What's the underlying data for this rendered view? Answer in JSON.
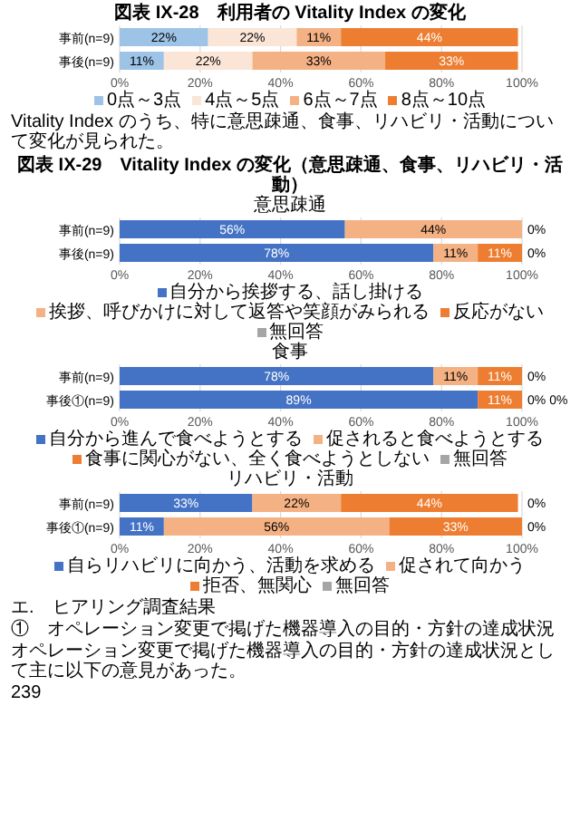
{
  "chart_data": [
    {
      "type": "bar",
      "orientation": "horizontal",
      "stacked": true,
      "title": "図表 IX-28　利用者の Vitality Index の変化",
      "categories": [
        "事前(n=9)",
        "事後(n=9)"
      ],
      "series": [
        {
          "name": "0点～3点",
          "color": "#9dc3e6",
          "values": [
            22,
            11
          ],
          "value_labels": [
            "22%",
            "11%"
          ]
        },
        {
          "name": "4点～5点",
          "color": "#fbe5d6",
          "values": [
            22,
            22
          ],
          "value_labels": [
            "22%",
            "22%"
          ]
        },
        {
          "name": "6点～7点",
          "color": "#f4b183",
          "values": [
            11,
            33
          ],
          "value_labels": [
            "11%",
            "33%"
          ]
        },
        {
          "name": "8点～10点",
          "color": "#ed7d31",
          "values": [
            44,
            33
          ],
          "value_labels": [
            "44%",
            "33%"
          ]
        }
      ],
      "xlim": [
        0,
        100
      ],
      "xticks": [
        {
          "value": 0,
          "label": "0%"
        },
        {
          "value": 20,
          "label": "20%"
        },
        {
          "value": 40,
          "label": "40%"
        },
        {
          "value": 60,
          "label": "60%"
        },
        {
          "value": 80,
          "label": "80%"
        },
        {
          "value": 100,
          "label": "100%"
        }
      ],
      "grid": "x",
      "legend": "bottom",
      "annotations": [
        "Vitality Index のうち、特に意思疎通、食事、リハビリ・活動について変化が見られた。"
      ]
    },
    {
      "type": "bar",
      "orientation": "horizontal",
      "stacked": true,
      "title": "図表 IX-29　Vitality Index の変化（意思疎通、食事、リハビリ・活動）",
      "subtitle": "意思疎通",
      "categories": [
        "事前(n=9)",
        "事後(n=9)"
      ],
      "series": [
        {
          "name": "自分から挨拶する、話し掛ける",
          "color": "#4472c4",
          "values": [
            56,
            78
          ],
          "value_labels": [
            "56%",
            "78%"
          ]
        },
        {
          "name": "挨拶、呼びかけに対して返答や笑顔がみられる",
          "color": "#f4b183",
          "values": [
            44,
            11
          ],
          "value_labels": [
            "44%",
            "11%"
          ]
        },
        {
          "name": "反応がない",
          "color": "#ed7d31",
          "values": [
            0,
            11
          ],
          "value_labels": [
            null,
            "11%"
          ]
        },
        {
          "name": "無回答",
          "color": "#a5a5a5",
          "values": [
            0,
            0
          ],
          "value_labels": [
            "0%",
            "0%"
          ]
        }
      ],
      "xlim": [
        0,
        100
      ],
      "xticks": [
        {
          "value": 0,
          "label": "0%"
        },
        {
          "value": 20,
          "label": "20%"
        },
        {
          "value": 40,
          "label": "40%"
        },
        {
          "value": 60,
          "label": "60%"
        },
        {
          "value": 80,
          "label": "80%"
        },
        {
          "value": 100,
          "label": "100%"
        }
      ],
      "grid": "x",
      "legend": "bottom"
    },
    {
      "type": "bar",
      "orientation": "horizontal",
      "stacked": true,
      "subtitle": "食事",
      "categories": [
        "事前(n=9)",
        "事後①(n=9)"
      ],
      "series": [
        {
          "name": "自分から進んで食べようとする",
          "color": "#4472c4",
          "values": [
            78,
            89
          ],
          "value_labels": [
            "78%",
            "89%"
          ]
        },
        {
          "name": "促されると食べようとする",
          "color": "#f4b183",
          "values": [
            11,
            0
          ],
          "value_labels": [
            "11%",
            "0%"
          ]
        },
        {
          "name": "食事に関心がない、全く食べようとしない",
          "color": "#ed7d31",
          "values": [
            11,
            11
          ],
          "value_labels": [
            "11%",
            "11%"
          ]
        },
        {
          "name": "無回答",
          "color": "#a5a5a5",
          "values": [
            0,
            0
          ],
          "value_labels": [
            "0%",
            "0%"
          ]
        }
      ],
      "xlim": [
        0,
        100
      ],
      "xticks": [
        {
          "value": 0,
          "label": "0%"
        },
        {
          "value": 20,
          "label": "20%"
        },
        {
          "value": 40,
          "label": "40%"
        },
        {
          "value": 60,
          "label": "60%"
        },
        {
          "value": 80,
          "label": "80%"
        },
        {
          "value": 100,
          "label": "100%"
        }
      ],
      "grid": "x",
      "legend": "bottom"
    },
    {
      "type": "bar",
      "orientation": "horizontal",
      "stacked": true,
      "subtitle": "リハビリ・活動",
      "categories": [
        "事前(n=9)",
        "事後①(n=9)"
      ],
      "series": [
        {
          "name": "自らリハビリに向かう、活動を求める",
          "color": "#4472c4",
          "values": [
            33,
            11
          ],
          "value_labels": [
            "33%",
            "11%"
          ]
        },
        {
          "name": "促されて向かう",
          "color": "#f4b183",
          "values": [
            22,
            56
          ],
          "value_labels": [
            "22%",
            "56%"
          ]
        },
        {
          "name": "拒否、無関心",
          "color": "#ed7d31",
          "values": [
            44,
            33
          ],
          "value_labels": [
            "44%",
            "33%"
          ]
        },
        {
          "name": "無回答",
          "color": "#a5a5a5",
          "values": [
            0,
            0
          ],
          "value_labels": [
            "0%",
            "0%"
          ]
        }
      ],
      "xlim": [
        0,
        100
      ],
      "xticks": [
        {
          "value": 0,
          "label": "0%"
        },
        {
          "value": 20,
          "label": "20%"
        },
        {
          "value": 40,
          "label": "40%"
        },
        {
          "value": 60,
          "label": "60%"
        },
        {
          "value": 80,
          "label": "80%"
        },
        {
          "value": 100,
          "label": "100%"
        }
      ],
      "grid": "x",
      "legend": "bottom",
      "annotations": [
        "エ.　ヒアリング調査結果",
        "①　オペレーション変更で掲げた機器導入の目的・方針の達成状況",
        "オペレーション変更で掲げた機器導入の目的・方針の達成状況として主に以下の意見があった。",
        "239"
      ]
    }
  ]
}
